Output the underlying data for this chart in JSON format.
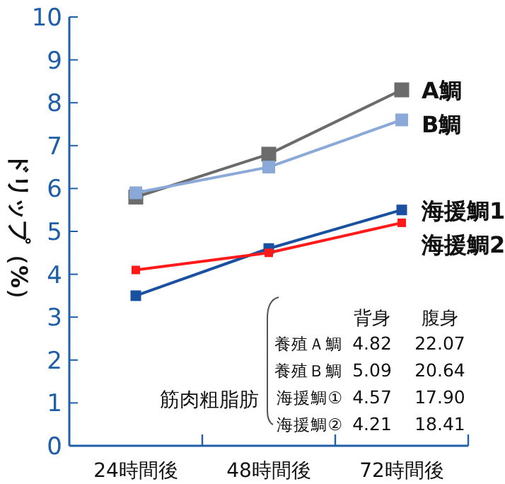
{
  "chart_data": {
    "type": "line",
    "ylabel": "ドリップ（%）",
    "categories": [
      "24時間後",
      "48時間後",
      "72時間後"
    ],
    "ylim": [
      0,
      10
    ],
    "yticks": [
      0,
      1,
      2,
      3,
      4,
      5,
      6,
      7,
      8,
      9,
      10
    ],
    "marker": "square",
    "line_style": "solid",
    "series": [
      {
        "name": "A鯛",
        "color": "#6b6b6b",
        "values": [
          5.8,
          6.8,
          8.3
        ]
      },
      {
        "name": "B鯛",
        "color": "#8aa8d8",
        "values": [
          5.9,
          6.5,
          7.6
        ]
      },
      {
        "name": "海援鯛1",
        "color": "#1a50a0",
        "values": [
          3.5,
          4.6,
          5.5
        ]
      },
      {
        "name": "海援鯛2",
        "color": "#ff1a1a",
        "values": [
          4.1,
          4.5,
          5.2
        ]
      }
    ],
    "annotations": [
      "筋肉粗脂肪",
      "背身",
      "腹身",
      "養殖Ａ鯛",
      "4.82",
      "22.07",
      "養殖Ｂ鯛",
      "5.09",
      "20.64",
      "海援鯛①",
      "4.57",
      "17.90",
      "海援鯛②",
      "4.21",
      "18.41"
    ]
  }
}
